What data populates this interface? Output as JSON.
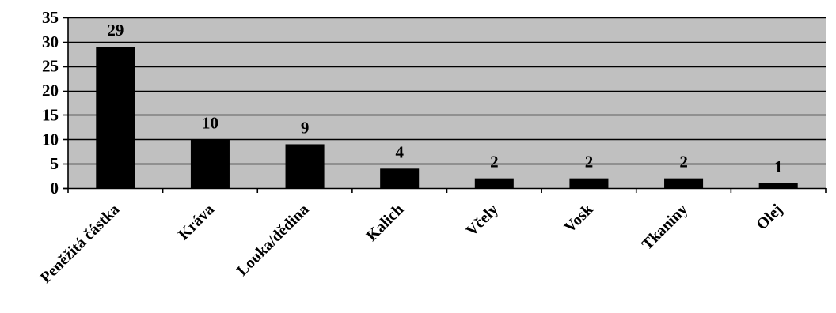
{
  "chart_data": {
    "type": "bar",
    "title": "",
    "xlabel": "",
    "ylabel": "",
    "categories": [
      "Peněžitá částka",
      "Kráva",
      "Louka/dědina",
      "Kalich",
      "Včely",
      "Vosk",
      "Tkaniny",
      "Olej"
    ],
    "values": [
      29,
      10,
      9,
      4,
      2,
      2,
      2,
      1
    ],
    "ylim": [
      0,
      35
    ],
    "yticks": [
      0,
      5,
      10,
      15,
      20,
      25,
      30,
      35
    ],
    "grid": true,
    "legend": "none",
    "colors": {
      "plot_background": "#c0c0c0",
      "bar": "#000000",
      "gridline": "#000000"
    }
  }
}
